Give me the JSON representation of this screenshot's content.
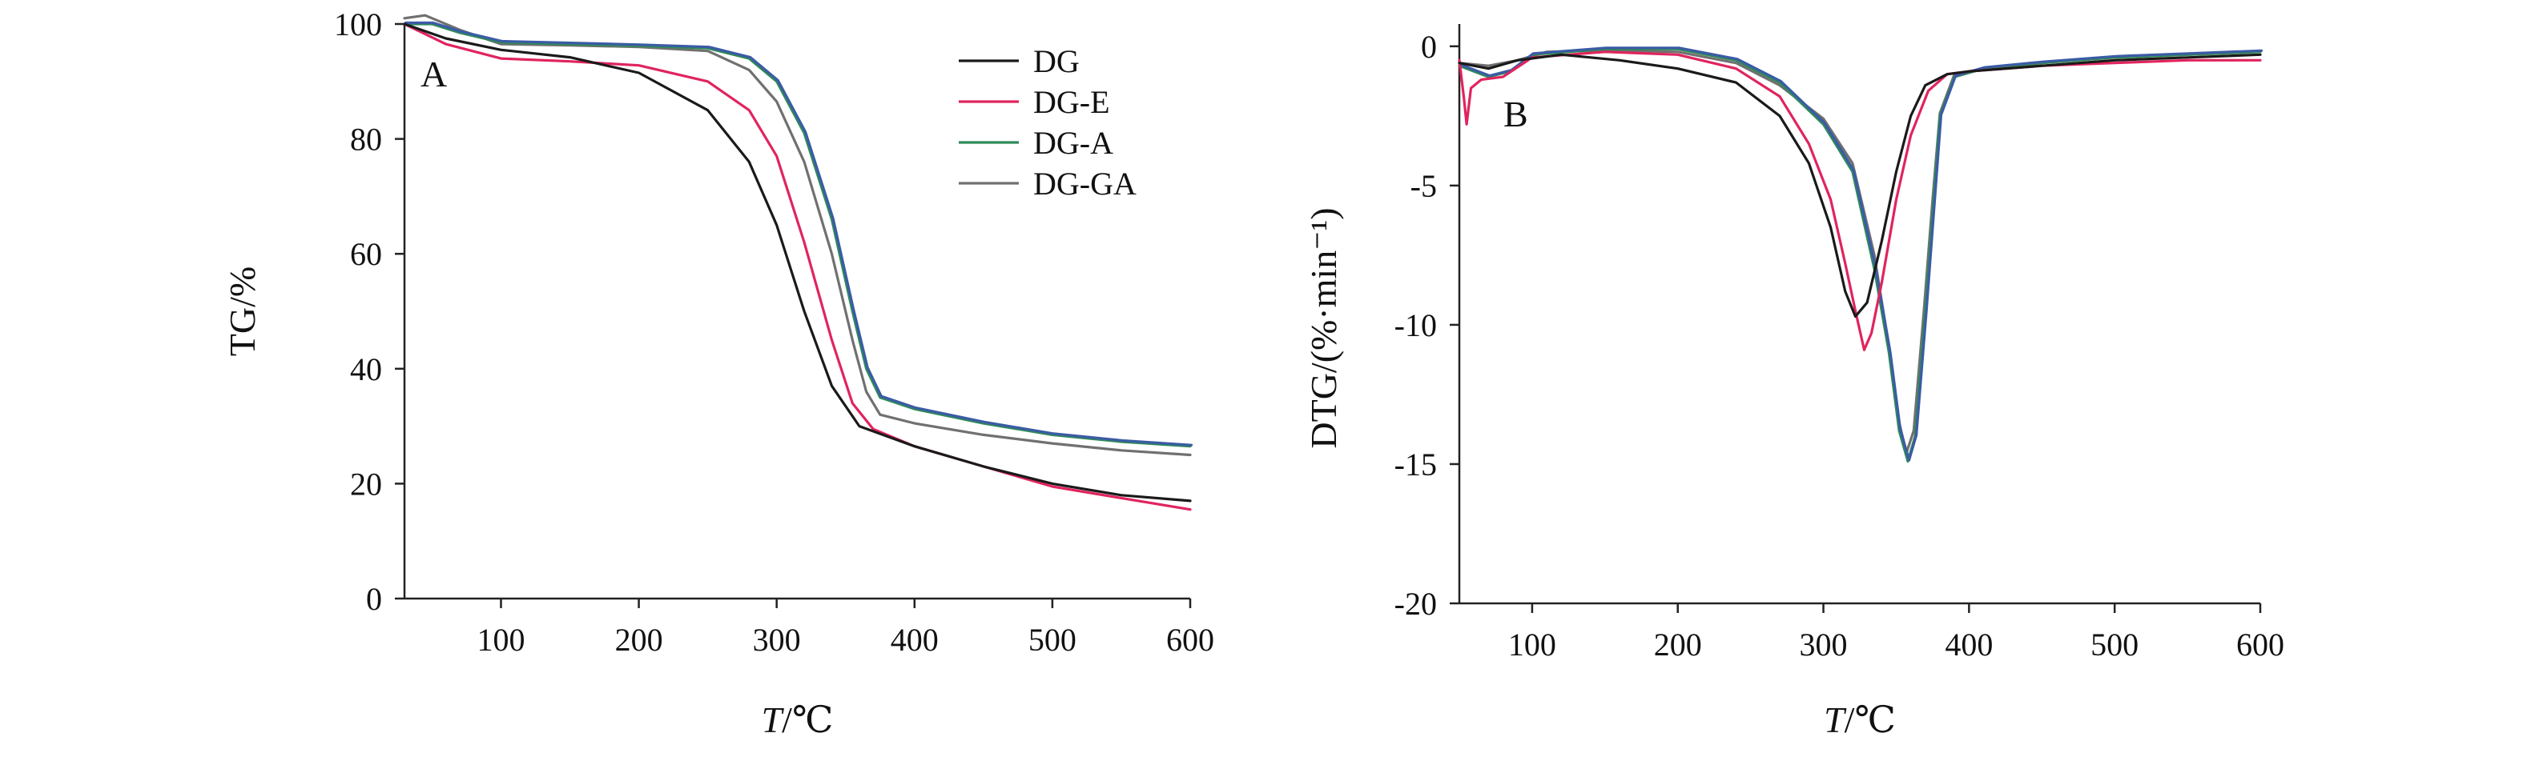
{
  "colors": {
    "DG": "#1a1a1a",
    "DG-E": "#e0245e",
    "DG-A": "#2e8b57",
    "DG-A-overlay": "#3b5ba5",
    "DG-GA": "#707070"
  },
  "legend": [
    "DG",
    "DG-E",
    "DG-A",
    "DG-GA"
  ],
  "chart_data": [
    {
      "type": "line",
      "panel": "A",
      "xlabel": {
        "italic": "T",
        "rest": "/℃"
      },
      "ylabel": "TG/%",
      "xlim": [
        30,
        600
      ],
      "ylim": [
        0,
        100
      ],
      "xticks": [
        100,
        200,
        300,
        400,
        500,
        600
      ],
      "yticks": [
        0,
        20,
        40,
        60,
        80,
        100
      ],
      "legend_position": "top-right",
      "series": [
        {
          "name": "DG",
          "points": [
            [
              30,
              100
            ],
            [
              60,
              97.5
            ],
            [
              100,
              95.5
            ],
            [
              150,
              94.2
            ],
            [
              200,
              91.5
            ],
            [
              250,
              85
            ],
            [
              280,
              76
            ],
            [
              300,
              65
            ],
            [
              320,
              50
            ],
            [
              340,
              37
            ],
            [
              360,
              30
            ],
            [
              400,
              26.5
            ],
            [
              450,
              23
            ],
            [
              500,
              20
            ],
            [
              550,
              18
            ],
            [
              600,
              17
            ]
          ]
        },
        {
          "name": "DG-E",
          "points": [
            [
              30,
              100
            ],
            [
              60,
              96.5
            ],
            [
              100,
              94
            ],
            [
              150,
              93.5
            ],
            [
              200,
              92.8
            ],
            [
              250,
              90
            ],
            [
              280,
              85
            ],
            [
              300,
              77
            ],
            [
              320,
              62
            ],
            [
              340,
              45
            ],
            [
              355,
              34
            ],
            [
              370,
              29.5
            ],
            [
              400,
              26.5
            ],
            [
              450,
              23
            ],
            [
              500,
              19.5
            ],
            [
              550,
              17.5
            ],
            [
              600,
              15.5
            ]
          ]
        },
        {
          "name": "DG-A",
          "points": [
            [
              30,
              100
            ],
            [
              50,
              100
            ],
            [
              70,
              98.5
            ],
            [
              100,
              96.8
            ],
            [
              150,
              96.5
            ],
            [
              200,
              96.2
            ],
            [
              250,
              95.8
            ],
            [
              280,
              94
            ],
            [
              300,
              90
            ],
            [
              320,
              81
            ],
            [
              340,
              66
            ],
            [
              355,
              50
            ],
            [
              365,
              40
            ],
            [
              375,
              35
            ],
            [
              400,
              33
            ],
            [
              450,
              30.5
            ],
            [
              500,
              28.5
            ],
            [
              550,
              27.3
            ],
            [
              600,
              26.5
            ]
          ]
        },
        {
          "name": "DG-GA",
          "points": [
            [
              30,
              101
            ],
            [
              45,
              101.5
            ],
            [
              70,
              99
            ],
            [
              100,
              96.5
            ],
            [
              150,
              96.3
            ],
            [
              200,
              96
            ],
            [
              250,
              95.3
            ],
            [
              280,
              92
            ],
            [
              300,
              86.5
            ],
            [
              320,
              76
            ],
            [
              340,
              60
            ],
            [
              355,
              45
            ],
            [
              365,
              36
            ],
            [
              375,
              32
            ],
            [
              400,
              30.5
            ],
            [
              450,
              28.5
            ],
            [
              500,
              27
            ],
            [
              550,
              25.8
            ],
            [
              600,
              25
            ]
          ]
        }
      ]
    },
    {
      "type": "line",
      "panel": "B",
      "xlabel": {
        "italic": "T",
        "rest": "/℃"
      },
      "ylabel": "DTG/(%·min⁻¹)",
      "xlim": [
        50,
        600
      ],
      "ylim": [
        -20,
        0.8
      ],
      "xticks": [
        100,
        200,
        300,
        400,
        500,
        600
      ],
      "yticks": [
        -20,
        -15,
        -10,
        -5,
        0
      ],
      "series": [
        {
          "name": "DG",
          "points": [
            [
              50,
              -0.6
            ],
            [
              70,
              -0.8
            ],
            [
              90,
              -0.5
            ],
            [
              120,
              -0.3
            ],
            [
              160,
              -0.5
            ],
            [
              200,
              -0.8
            ],
            [
              240,
              -1.3
            ],
            [
              270,
              -2.5
            ],
            [
              290,
              -4.2
            ],
            [
              305,
              -6.5
            ],
            [
              315,
              -8.8
            ],
            [
              322,
              -9.7
            ],
            [
              330,
              -9.2
            ],
            [
              340,
              -7
            ],
            [
              350,
              -4.5
            ],
            [
              360,
              -2.5
            ],
            [
              370,
              -1.4
            ],
            [
              385,
              -1.0
            ],
            [
              400,
              -0.9
            ],
            [
              450,
              -0.7
            ],
            [
              500,
              -0.5
            ],
            [
              550,
              -0.4
            ],
            [
              600,
              -0.3
            ]
          ]
        },
        {
          "name": "DG-E",
          "points": [
            [
              50,
              -0.5
            ],
            [
              53,
              -1.8
            ],
            [
              55,
              -2.8
            ],
            [
              58,
              -1.5
            ],
            [
              65,
              -1.2
            ],
            [
              80,
              -1.1
            ],
            [
              100,
              -0.4
            ],
            [
              150,
              -0.2
            ],
            [
              200,
              -0.3
            ],
            [
              240,
              -0.8
            ],
            [
              270,
              -1.8
            ],
            [
              290,
              -3.5
            ],
            [
              305,
              -5.5
            ],
            [
              315,
              -7.8
            ],
            [
              322,
              -9.5
            ],
            [
              328,
              -10.9
            ],
            [
              333,
              -10.3
            ],
            [
              340,
              -8.5
            ],
            [
              350,
              -5.5
            ],
            [
              360,
              -3.2
            ],
            [
              372,
              -1.6
            ],
            [
              385,
              -1.0
            ],
            [
              400,
              -0.9
            ],
            [
              450,
              -0.7
            ],
            [
              500,
              -0.6
            ],
            [
              550,
              -0.5
            ],
            [
              600,
              -0.5
            ]
          ]
        },
        {
          "name": "DG-A",
          "points": [
            [
              50,
              -0.7
            ],
            [
              70,
              -1.1
            ],
            [
              85,
              -0.9
            ],
            [
              100,
              -0.3
            ],
            [
              150,
              -0.1
            ],
            [
              200,
              -0.1
            ],
            [
              240,
              -0.5
            ],
            [
              270,
              -1.3
            ],
            [
              300,
              -2.8
            ],
            [
              320,
              -4.5
            ],
            [
              335,
              -8
            ],
            [
              345,
              -11
            ],
            [
              352,
              -13.8
            ],
            [
              358,
              -14.9
            ],
            [
              363,
              -14
            ],
            [
              370,
              -9.5
            ],
            [
              375,
              -6
            ],
            [
              380,
              -2.5
            ],
            [
              390,
              -1.1
            ],
            [
              410,
              -0.8
            ],
            [
              450,
              -0.6
            ],
            [
              500,
              -0.4
            ],
            [
              550,
              -0.3
            ],
            [
              600,
              -0.2
            ]
          ]
        },
        {
          "name": "DG-GA",
          "points": [
            [
              50,
              -0.6
            ],
            [
              70,
              -0.7
            ],
            [
              90,
              -0.5
            ],
            [
              110,
              -0.2
            ],
            [
              150,
              -0.15
            ],
            [
              200,
              -0.2
            ],
            [
              240,
              -0.6
            ],
            [
              270,
              -1.4
            ],
            [
              300,
              -2.6
            ],
            [
              320,
              -4.2
            ],
            [
              335,
              -7.5
            ],
            [
              345,
              -10.8
            ],
            [
              352,
              -13.5
            ],
            [
              357,
              -14.6
            ],
            [
              362,
              -13.8
            ],
            [
              369,
              -9.5
            ],
            [
              375,
              -5.5
            ],
            [
              380,
              -2.4
            ],
            [
              390,
              -1.0
            ],
            [
              410,
              -0.8
            ],
            [
              450,
              -0.6
            ],
            [
              500,
              -0.4
            ],
            [
              550,
              -0.3
            ],
            [
              600,
              -0.2
            ]
          ]
        }
      ]
    }
  ]
}
